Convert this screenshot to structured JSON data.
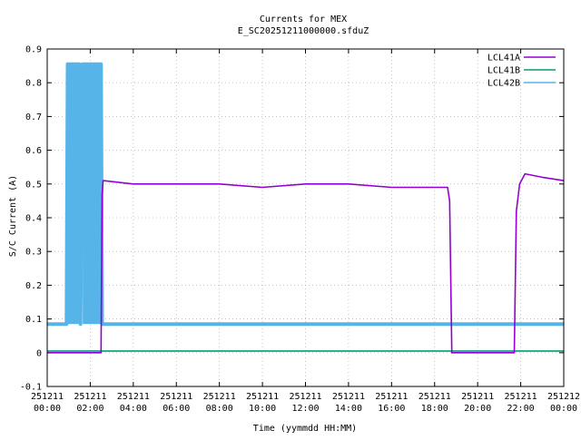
{
  "chart_data": {
    "type": "line",
    "title": "Currents for MEX",
    "subtitle": "E_SC20251211000000.sfduZ",
    "xlabel": "Time (yymmdd HH:MM)",
    "ylabel": "S/C Current (A)",
    "xlim_hours": [
      0,
      24
    ],
    "ylim": [
      -0.1,
      0.9
    ],
    "y_ticks": [
      -0.1,
      0,
      0.1,
      0.2,
      0.3,
      0.4,
      0.5,
      0.6,
      0.7,
      0.8,
      0.9
    ],
    "y_tick_labels": [
      "-0.1",
      "0",
      "0.1",
      "0.2",
      "0.3",
      "0.4",
      "0.5",
      "0.6",
      "0.7",
      "0.8",
      "0.9"
    ],
    "x_tick_hours": [
      0,
      2,
      4,
      6,
      8,
      10,
      12,
      14,
      16,
      18,
      20,
      22,
      24
    ],
    "x_tick_labels": [
      [
        "251211",
        "00:00"
      ],
      [
        "251211",
        "02:00"
      ],
      [
        "251211",
        "04:00"
      ],
      [
        "251211",
        "06:00"
      ],
      [
        "251211",
        "08:00"
      ],
      [
        "251211",
        "10:00"
      ],
      [
        "251211",
        "12:00"
      ],
      [
        "251211",
        "14:00"
      ],
      [
        "251211",
        "16:00"
      ],
      [
        "251211",
        "18:00"
      ],
      [
        "251211",
        "20:00"
      ],
      [
        "251211",
        "22:00"
      ],
      [
        "251212",
        "00:00"
      ]
    ],
    "grid": true,
    "legend_position": "top-right",
    "series": [
      {
        "name": "LCL41A",
        "color": "#9400d3",
        "points": [
          [
            0.0,
            0.0
          ],
          [
            2.5,
            0.0
          ],
          [
            2.55,
            0.47
          ],
          [
            2.6,
            0.51
          ],
          [
            4.0,
            0.5
          ],
          [
            6.0,
            0.5
          ],
          [
            8.0,
            0.5
          ],
          [
            10.0,
            0.49
          ],
          [
            12.0,
            0.5
          ],
          [
            14.0,
            0.5
          ],
          [
            16.0,
            0.49
          ],
          [
            18.0,
            0.49
          ],
          [
            18.6,
            0.49
          ],
          [
            18.7,
            0.45
          ],
          [
            18.8,
            0.0
          ],
          [
            21.7,
            0.0
          ],
          [
            21.8,
            0.42
          ],
          [
            21.95,
            0.5
          ],
          [
            22.2,
            0.53
          ],
          [
            23.0,
            0.52
          ],
          [
            24.0,
            0.51
          ]
        ]
      },
      {
        "name": "LCL41B",
        "color": "#009e73",
        "points": [
          [
            0.0,
            0.005
          ],
          [
            4.5,
            0.005
          ],
          [
            6.5,
            0.005
          ],
          [
            12.0,
            0.005
          ],
          [
            18.0,
            0.005
          ],
          [
            24.0,
            0.005
          ]
        ]
      },
      {
        "name": "LCL42B",
        "color": "#56b4e9",
        "points": [
          [
            0.0,
            0.085
          ],
          [
            0.9,
            0.085
          ],
          [
            0.95,
            0.855
          ],
          [
            1.5,
            0.855
          ],
          [
            1.55,
            0.085
          ],
          [
            1.65,
            0.855
          ],
          [
            2.5,
            0.855
          ],
          [
            2.55,
            0.085
          ],
          [
            8.0,
            0.085
          ],
          [
            16.0,
            0.085
          ],
          [
            24.0,
            0.085
          ]
        ],
        "dense_band_hours": [
          [
            0.9,
            1.5
          ],
          [
            1.65,
            2.5
          ]
        ],
        "dense_band_range": [
          0.085,
          0.855
        ]
      }
    ]
  }
}
